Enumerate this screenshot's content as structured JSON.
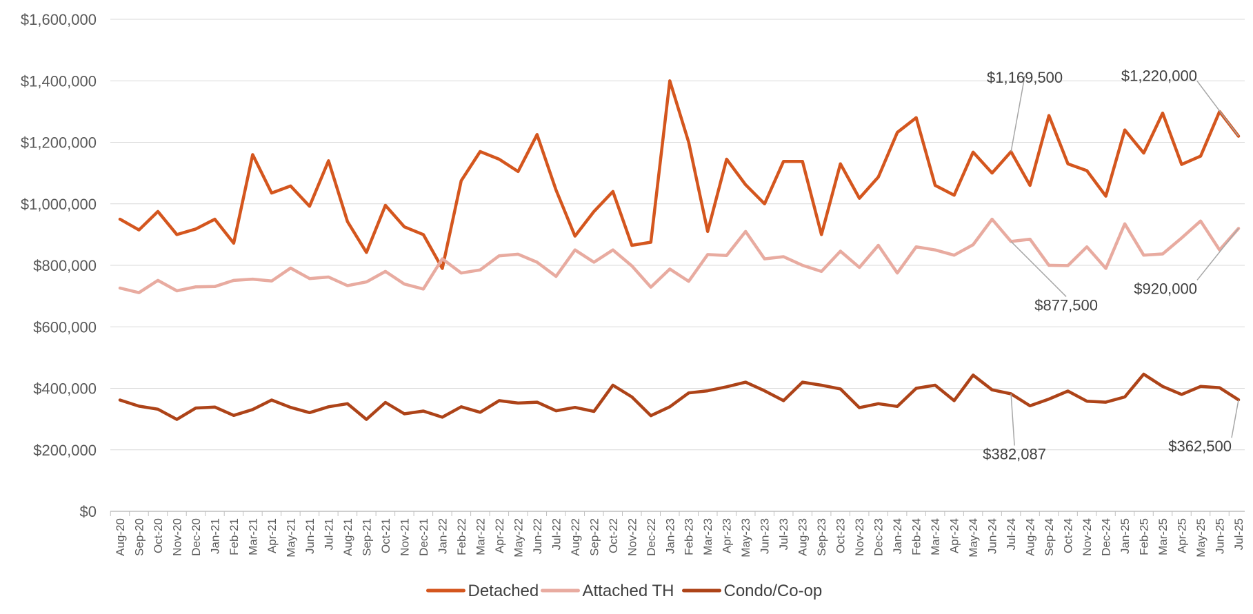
{
  "chart_data": {
    "type": "line",
    "title": "",
    "xlabel": "",
    "ylabel": "",
    "ylim": [
      0,
      1600000
    ],
    "yticks": [
      0,
      200000,
      400000,
      600000,
      800000,
      1000000,
      1200000,
      1400000,
      1600000
    ],
    "ytick_labels": [
      "$0",
      "$200,000",
      "$400,000",
      "$600,000",
      "$800,000",
      "$1,000,000",
      "$1,200,000",
      "$1,400,000",
      "$1,600,000"
    ],
    "grid": "horizontal",
    "legend": "bottom",
    "categories": [
      "Aug-20",
      "Sep-20",
      "Oct-20",
      "Nov-20",
      "Dec-20",
      "Jan-21",
      "Feb-21",
      "Mar-21",
      "Apr-21",
      "May-21",
      "Jun-21",
      "Jul-21",
      "Aug-21",
      "Sep-21",
      "Oct-21",
      "Nov-21",
      "Dec-21",
      "Jan-22",
      "Feb-22",
      "Mar-22",
      "Apr-22",
      "May-22",
      "Jun-22",
      "Jul-22",
      "Aug-22",
      "Sep-22",
      "Oct-22",
      "Nov-22",
      "Dec-22",
      "Jan-23",
      "Feb-23",
      "Mar-23",
      "Apr-23",
      "May-23",
      "Jun-23",
      "Jul-23",
      "Aug-23",
      "Sep-23",
      "Oct-23",
      "Nov-23",
      "Dec-23",
      "Jan-24",
      "Feb-24",
      "Mar-24",
      "Apr-24",
      "May-24",
      "Jun-24",
      "Jul-24",
      "Aug-24",
      "Sep-24",
      "Oct-24",
      "Nov-24",
      "Dec-24",
      "Jan-25",
      "Feb-25",
      "Mar-25",
      "Apr-25",
      "May-25",
      "Jun-25",
      "Jul-25"
    ],
    "series": [
      {
        "name": "Detached",
        "color": "#D4561E",
        "values": [
          950000,
          915000,
          975000,
          900000,
          918000,
          950000,
          872000,
          1160000,
          1035000,
          1058000,
          992000,
          1140000,
          942000,
          842000,
          995000,
          925000,
          900000,
          790000,
          1075000,
          1170000,
          1145000,
          1105000,
          1225000,
          1045000,
          895000,
          975000,
          1040000,
          865000,
          875000,
          1400000,
          1200000,
          910000,
          1145000,
          1062000,
          1000000,
          1138000,
          1138000,
          900000,
          1130000,
          1018000,
          1087000,
          1232000,
          1280000,
          1060000,
          1028000,
          1168000,
          1100000,
          1169500,
          1060000,
          1287000,
          1130000,
          1108000,
          1025000,
          1240000,
          1165000,
          1295000,
          1128000,
          1155000,
          1300000,
          1220000
        ]
      },
      {
        "name": "Attached TH",
        "color": "#E8ABA0",
        "values": [
          726000,
          711000,
          751000,
          717000,
          730000,
          731000,
          751000,
          755000,
          749000,
          791000,
          757000,
          762000,
          734000,
          746000,
          780000,
          739000,
          723000,
          821000,
          775000,
          785000,
          831000,
          836000,
          810000,
          764000,
          850000,
          810000,
          850000,
          798000,
          729000,
          788000,
          748000,
          835000,
          832000,
          910000,
          821000,
          828000,
          800000,
          780000,
          846000,
          793000,
          865000,
          775000,
          860000,
          850000,
          833000,
          867000,
          950000,
          877500,
          885000,
          800000,
          799000,
          860000,
          790000,
          935000,
          833000,
          837000,
          889000,
          944000,
          850000,
          920000
        ]
      },
      {
        "name": "Condo/Co-op",
        "color": "#AD4318",
        "values": [
          362000,
          342000,
          332000,
          299000,
          336000,
          339000,
          312000,
          331000,
          362000,
          338000,
          321000,
          340000,
          350000,
          299000,
          354000,
          317000,
          326000,
          306000,
          340000,
          322000,
          360000,
          352000,
          355000,
          327000,
          338000,
          325000,
          410000,
          372000,
          311000,
          340000,
          385000,
          392000,
          405000,
          420000,
          392000,
          360000,
          420000,
          410000,
          398000,
          337000,
          350000,
          341000,
          400000,
          410000,
          360000,
          443000,
          395000,
          382087,
          343000,
          365000,
          391000,
          358000,
          355000,
          372000,
          446000,
          406000,
          380000,
          406000,
          402000,
          362500
        ]
      }
    ],
    "annotations": [
      {
        "label": "$1,169,500",
        "series": "Detached",
        "category": "Jul-24"
      },
      {
        "label": "$1,220,000",
        "series": "Detached",
        "category": "Jul-25"
      },
      {
        "label": "$877,500",
        "series": "Attached TH",
        "category": "Jul-24"
      },
      {
        "label": "$920,000",
        "series": "Attached TH",
        "category": "Jul-25"
      },
      {
        "label": "$382,087",
        "series": "Condo/Co-op",
        "category": "Jul-24"
      },
      {
        "label": "$362,500",
        "series": "Condo/Co-op",
        "category": "Jul-25"
      }
    ]
  }
}
